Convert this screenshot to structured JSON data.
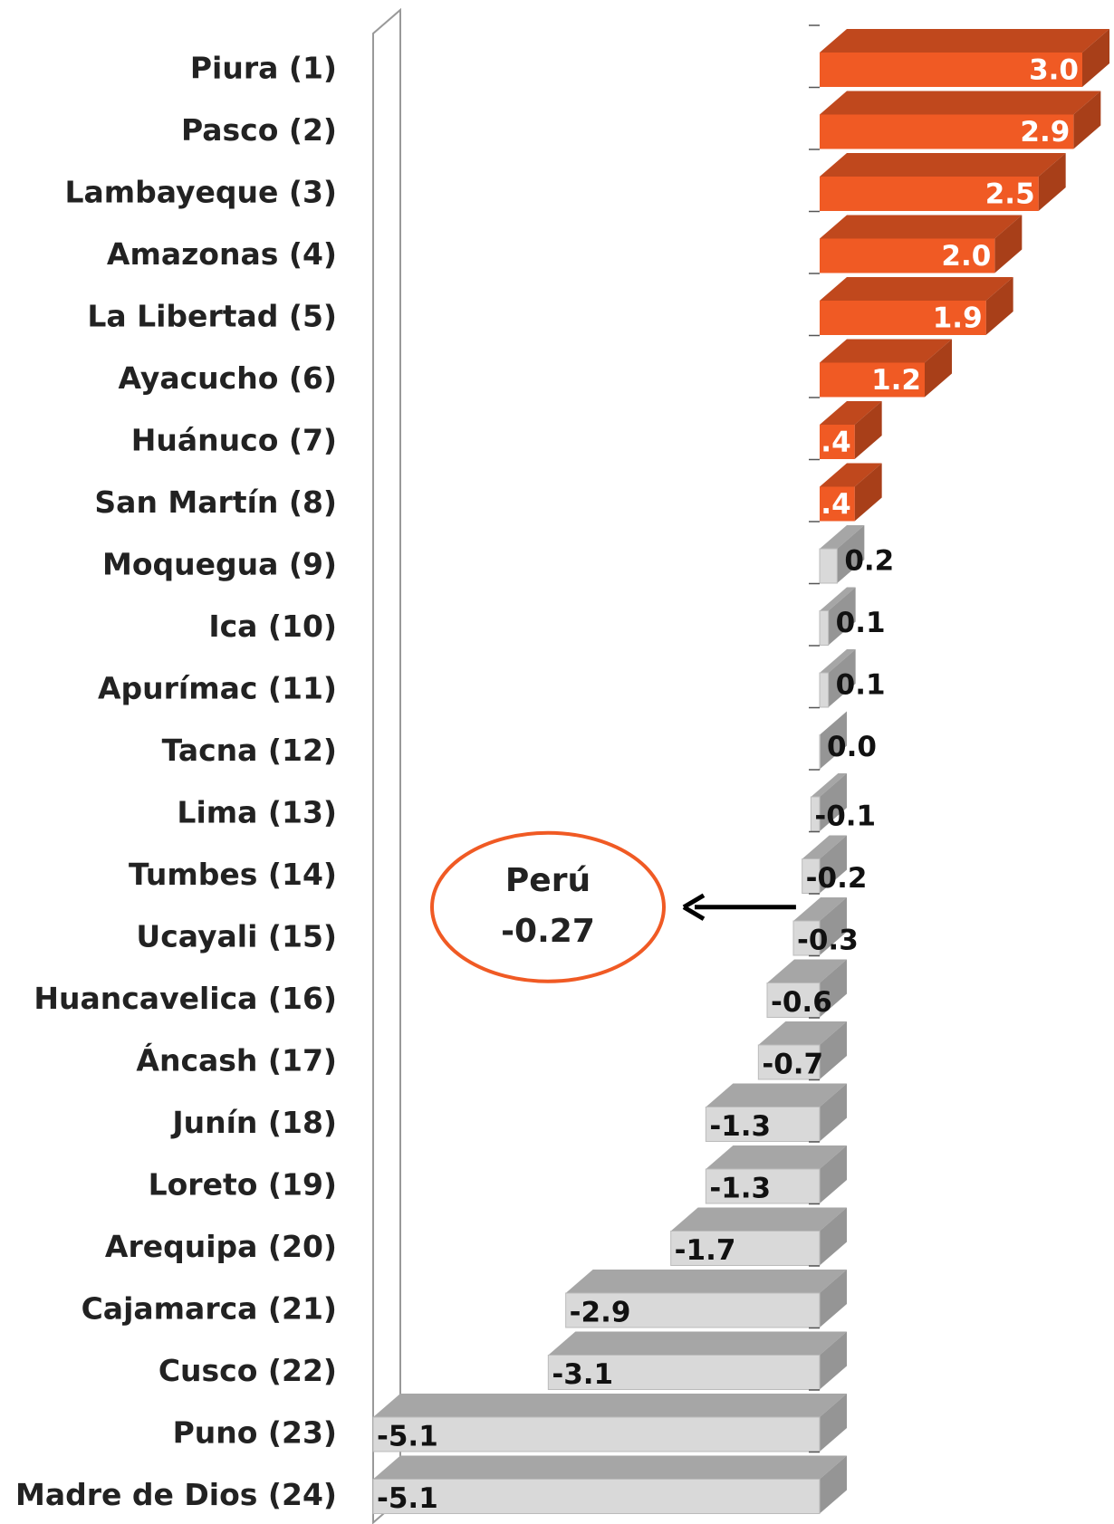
{
  "chart_data": {
    "type": "bar3d-horizontal",
    "categories": [
      "Piura (1)",
      "Pasco (2)",
      "Lambayeque (3)",
      "Amazonas (4)",
      "La Libertad (5)",
      "Ayacucho (6)",
      "Huánuco (7)",
      "San Martín (8)",
      "Moquegua (9)",
      "Ica (10)",
      "Apurímac (11)",
      "Tacna (12)",
      "Lima (13)",
      "Tumbes (14)",
      "Ucayali (15)",
      "Huancavelica (16)",
      "Áncash (17)",
      "Junín (18)",
      "Loreto (19)",
      "Arequipa (20)",
      "Cajamarca (21)",
      "Cusco (22)",
      "Puno (23)",
      "Madre de Dios (24)"
    ],
    "values": [
      3.0,
      2.9,
      2.5,
      2.0,
      1.9,
      1.2,
      0.4,
      0.4,
      0.2,
      0.1,
      0.1,
      0.0,
      -0.1,
      -0.2,
      -0.3,
      -0.6,
      -0.7,
      -1.3,
      -1.3,
      -1.7,
      -2.9,
      -3.1,
      -5.1,
      -5.1
    ],
    "value_labels": [
      "3.0",
      "2.9",
      "2.5",
      "2.0",
      "1.9",
      "1.2",
      "0.4",
      "0.4",
      "0.2",
      "0.1",
      "0.1",
      "0.0",
      "-0.1",
      "-0.2",
      "-0.3",
      "-0.6",
      "-0.7",
      "-1.3",
      "-1.3",
      "-1.7",
      "-2.9",
      "-3.1",
      "-5.1",
      "-5.1"
    ],
    "colors": [
      "#f05a24",
      "#f05a24",
      "#f05a24",
      "#f05a24",
      "#f05a24",
      "#f05a24",
      "#f05a24",
      "#f05a24",
      "#d9d9d9",
      "#d9d9d9",
      "#d9d9d9",
      "#d9d9d9",
      "#d9d9d9",
      "#d9d9d9",
      "#d9d9d9",
      "#d9d9d9",
      "#d9d9d9",
      "#d9d9d9",
      "#d9d9d9",
      "#d9d9d9",
      "#d9d9d9",
      "#d9d9d9",
      "#d9d9d9",
      "#d9d9d9"
    ],
    "xlim": [
      -5.1,
      3.0
    ],
    "annotation": {
      "label": "Perú",
      "value": -0.27,
      "color": "#f05a24"
    }
  }
}
